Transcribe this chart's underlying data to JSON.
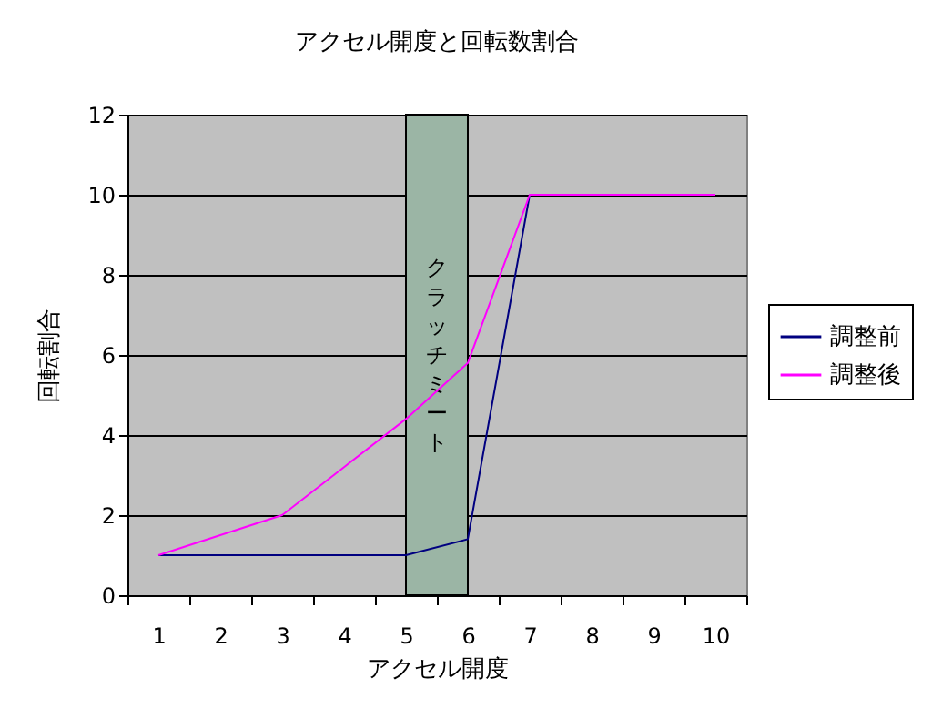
{
  "chart_data": {
    "type": "line",
    "title": "アクセル開度と回転数割合",
    "xlabel": "アクセル開度",
    "ylabel": "回転割合",
    "categories": [
      "1",
      "2",
      "3",
      "4",
      "5",
      "6",
      "7",
      "8",
      "9",
      "10"
    ],
    "series": [
      {
        "name": "調整前",
        "color": "#000080",
        "values": [
          1,
          1,
          1,
          1,
          1,
          1.4,
          10,
          null,
          null,
          null
        ]
      },
      {
        "name": "調整後",
        "color": "#ff00ff",
        "values": [
          1,
          1.5,
          2,
          3.2,
          4.4,
          5.8,
          10,
          10,
          10,
          10
        ]
      }
    ],
    "ylim": [
      0,
      12
    ],
    "yticks": [
      0,
      2,
      4,
      6,
      8,
      10,
      12
    ],
    "grid": "y",
    "legend": "right",
    "bands": [
      {
        "axis": "x",
        "from": "5",
        "to": "6",
        "label": "クラッチミート",
        "color": "#9bb5a5"
      }
    ]
  }
}
